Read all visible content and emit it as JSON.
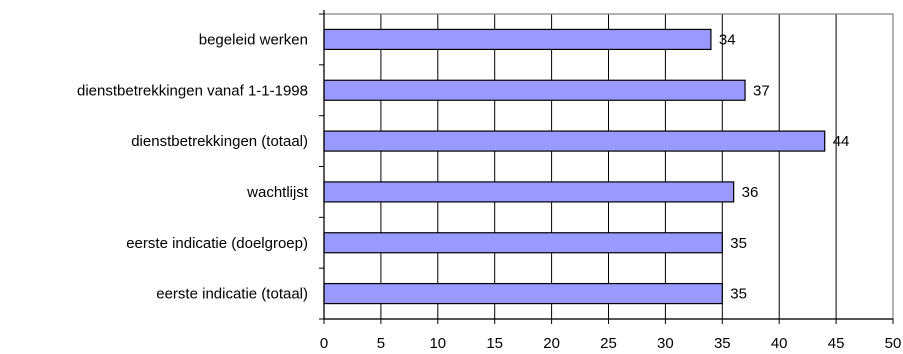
{
  "chart_data": {
    "type": "bar",
    "orientation": "horizontal",
    "categories": [
      "begeleid werken",
      "dienstbetrekkingen vanaf 1-1-1998",
      "dienstbetrekkingen (totaal)",
      "wachtlijst",
      "eerste indicatie (doelgroep)",
      "eerste indicatie (totaal)"
    ],
    "values": [
      34,
      37,
      44,
      36,
      35,
      35
    ],
    "xticks": [
      "0",
      "5",
      "10",
      "15",
      "20",
      "25",
      "30",
      "35",
      "40",
      "45",
      "50"
    ],
    "xlim": [
      0,
      50
    ],
    "grid": "vertical",
    "bar_color": "#9999ff",
    "bar_stroke": "#000000",
    "data_labels": true
  }
}
